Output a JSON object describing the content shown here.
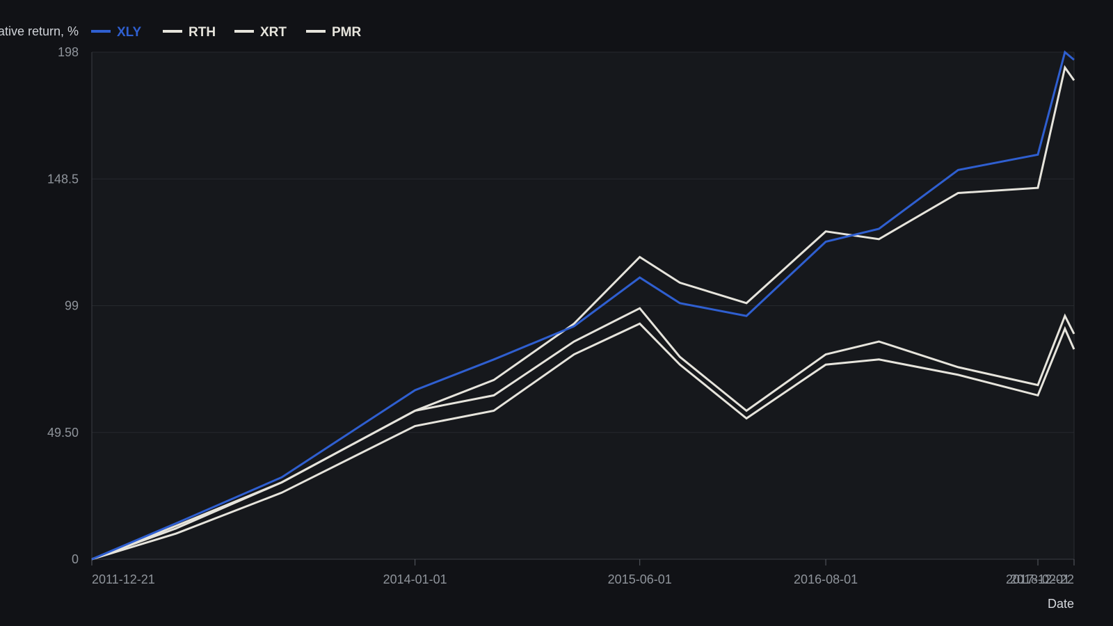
{
  "chart_data": {
    "type": "line",
    "title": "",
    "ylabel": "Cumulative return, %",
    "xlabel": "Date",
    "ylim": [
      0,
      198
    ],
    "yticks": [
      "0",
      "49.50",
      "99",
      "148.5",
      "198"
    ],
    "xlim": [
      "2011-12-21",
      "2018-02-22"
    ],
    "xticks": [
      "2011-12-21",
      "2014-01-01",
      "2015-06-01",
      "2016-08-01",
      "2017-12-01",
      "2018-02-22"
    ],
    "grid": true,
    "legend_position": "top-left",
    "x": [
      "2011-12-21",
      "2012-07-01",
      "2013-03-01",
      "2014-01-01",
      "2014-07-01",
      "2015-01-01",
      "2015-06-01",
      "2015-09-01",
      "2016-02-01",
      "2016-08-01",
      "2016-12-01",
      "2017-06-01",
      "2017-12-01",
      "2018-02-01",
      "2018-02-22"
    ],
    "series": [
      {
        "name": "XLY",
        "color": "#2f5fd0",
        "values": [
          0,
          14,
          32,
          66,
          78,
          91,
          110,
          100,
          95,
          124,
          129,
          152,
          158,
          198,
          195
        ]
      },
      {
        "name": "RTH",
        "color": "#e6e4dc",
        "values": [
          0,
          13,
          30,
          58,
          70,
          92,
          118,
          108,
          100,
          128,
          125,
          143,
          145,
          192,
          187
        ]
      },
      {
        "name": "XRT",
        "color": "#e6e4dc",
        "values": [
          0,
          12,
          30,
          58,
          64,
          85,
          98,
          79,
          58,
          80,
          85,
          75,
          68,
          95,
          88
        ]
      },
      {
        "name": "PMR",
        "color": "#e6e4dc",
        "values": [
          0,
          10,
          26,
          52,
          58,
          80,
          92,
          76,
          55,
          76,
          78,
          72,
          64,
          90,
          82
        ]
      }
    ]
  }
}
